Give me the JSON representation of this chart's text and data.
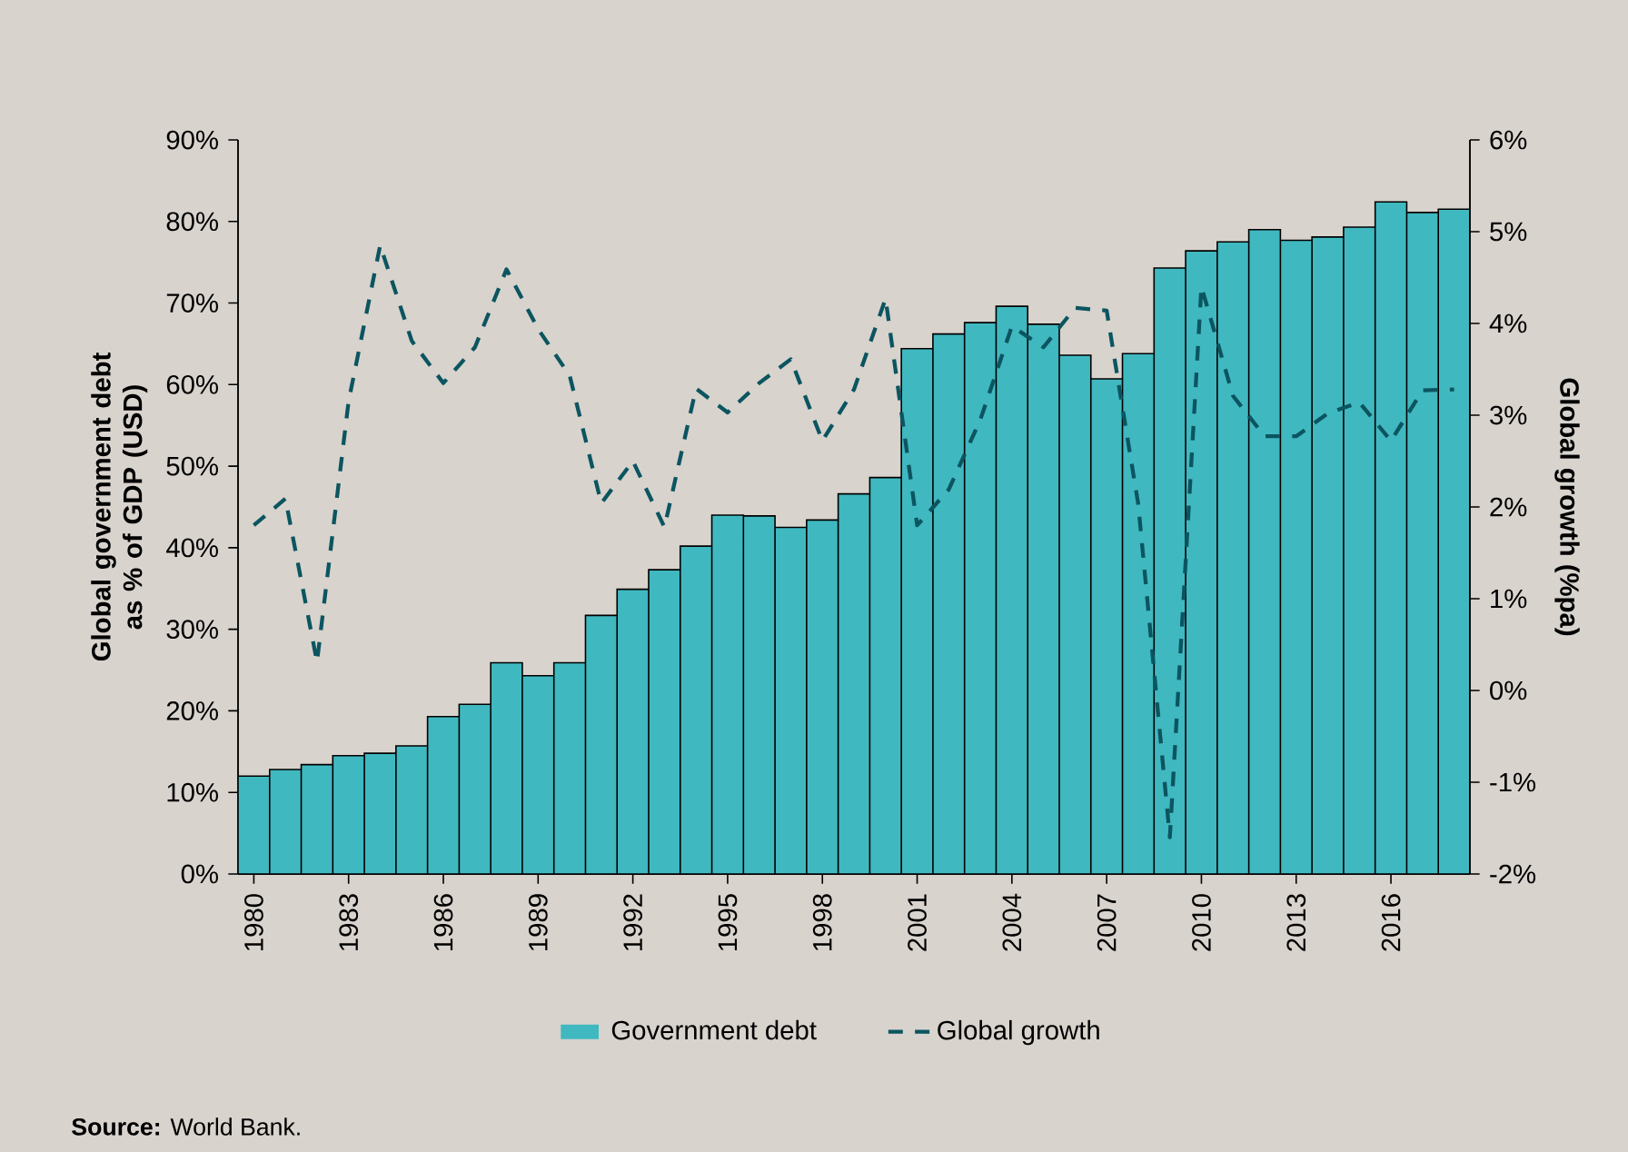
{
  "chart_data": {
    "type": "bar",
    "x": [
      1980,
      1981,
      1982,
      1983,
      1984,
      1985,
      1986,
      1987,
      1988,
      1989,
      1990,
      1991,
      1992,
      1993,
      1994,
      1995,
      1996,
      1997,
      1998,
      1999,
      2000,
      2001,
      2002,
      2003,
      2004,
      2005,
      2006,
      2007,
      2008,
      2009,
      2010,
      2011,
      2012,
      2013,
      2014,
      2015,
      2016,
      2017,
      2018
    ],
    "xlim": [
      1979.5,
      2018.5
    ],
    "xticks": [
      1980,
      1983,
      1986,
      1989,
      1992,
      1995,
      1998,
      2001,
      2004,
      2007,
      2010,
      2013,
      2016
    ],
    "ylabel": "Global government debt as % of GDP (USD)",
    "y2label": "Global growth (%pa)",
    "ylim": [
      0,
      90
    ],
    "yticks": [
      {
        "value": 0,
        "label": "0%"
      },
      {
        "value": 10,
        "label": "10%"
      },
      {
        "value": 20,
        "label": "20%"
      },
      {
        "value": 30,
        "label": "30%"
      },
      {
        "value": 40,
        "label": "40%"
      },
      {
        "value": 50,
        "label": "50%"
      },
      {
        "value": 60,
        "label": "60%"
      },
      {
        "value": 70,
        "label": "70%"
      },
      {
        "value": 80,
        "label": "80%"
      },
      {
        "value": 90,
        "label": "90%"
      }
    ],
    "y2lim": [
      -2,
      6
    ],
    "y2ticks": [
      {
        "value": -2,
        "label": "-2%"
      },
      {
        "value": -1,
        "label": "-1%"
      },
      {
        "value": 0,
        "label": "0%"
      },
      {
        "value": 1,
        "label": "1%"
      },
      {
        "value": 2,
        "label": "2%"
      },
      {
        "value": 3,
        "label": "3%"
      },
      {
        "value": 4,
        "label": "4%"
      },
      {
        "value": 5,
        "label": "5%"
      },
      {
        "value": 6,
        "label": "6%"
      }
    ],
    "series": [
      {
        "name": "Government debt",
        "color": "#40b8c0",
        "values": [
          12.0,
          12.8,
          13.4,
          14.5,
          14.8,
          15.7,
          19.3,
          20.8,
          25.9,
          24.3,
          25.9,
          31.7,
          34.9,
          37.3,
          40.2,
          44.0,
          43.9,
          42.5,
          43.4,
          46.6,
          48.6,
          64.4,
          66.2,
          67.6,
          69.6,
          67.4,
          63.6,
          60.7,
          63.8,
          74.3,
          76.4,
          77.5,
          79.0,
          77.7,
          78.1,
          79.3,
          82.4,
          81.1,
          81.5
        ]
      },
      {
        "name": "Global growth",
        "type": "line",
        "axis": "y2",
        "color": "#0b5560",
        "line_style": "dashed",
        "values": [
          1.8,
          2.09,
          0.31,
          3.15,
          4.85,
          3.81,
          3.35,
          3.74,
          4.59,
          3.94,
          3.43,
          2.04,
          2.5,
          1.78,
          3.29,
          3.03,
          3.35,
          3.61,
          2.72,
          3.28,
          4.27,
          1.8,
          2.19,
          2.95,
          3.97,
          3.74,
          4.17,
          4.14,
          2.03,
          -1.6,
          4.4,
          3.21,
          2.77,
          2.77,
          3.02,
          3.14,
          2.72,
          3.27,
          3.28
        ]
      }
    ],
    "legend": "bottom",
    "grid": false,
    "marker": "none",
    "annotations": [
      "**Source:** World Bank."
    ]
  }
}
